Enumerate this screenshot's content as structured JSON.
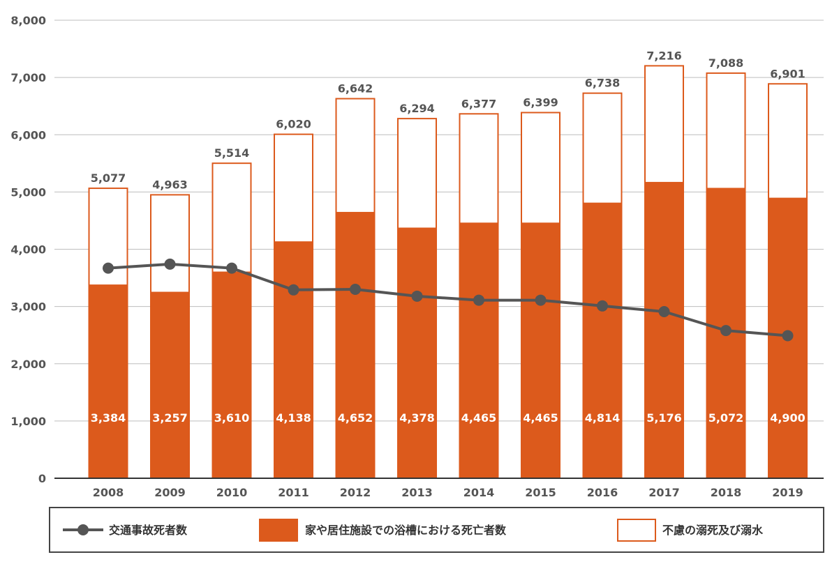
{
  "chart_data": {
    "type": "bar",
    "subtype": "stacked-bar-with-line",
    "categories": [
      "2008",
      "2009",
      "2010",
      "2011",
      "2012",
      "2013",
      "2014",
      "2015",
      "2016",
      "2017",
      "2018",
      "2019"
    ],
    "series": [
      {
        "name": "家や居住施設での浴槽における死亡者数",
        "kind": "bar-filled",
        "color": "#dc5a1c",
        "values": [
          3384,
          3257,
          3610,
          4138,
          4652,
          4378,
          4465,
          4465,
          4814,
          5176,
          5072,
          4900
        ],
        "labels": [
          "3,384",
          "3,257",
          "3,610",
          "4,138",
          "4,652",
          "4,378",
          "4,465",
          "4,465",
          "4,814",
          "5,176",
          "5,072",
          "4,900"
        ]
      },
      {
        "name": "不慮の溺死及び溺水",
        "kind": "bar-outline",
        "color": "#dc5a1c",
        "values": [
          5077,
          4963,
          5514,
          6020,
          6642,
          6294,
          6377,
          6399,
          6738,
          7216,
          7088,
          6901
        ],
        "labels": [
          "5,077",
          "4,963",
          "5,514",
          "6,020",
          "6,642",
          "6,294",
          "6,377",
          "6,399",
          "6,738",
          "7,216",
          "7,088",
          "6,901"
        ]
      },
      {
        "name": "交通事故死者数",
        "kind": "line",
        "color": "#555555",
        "values": [
          3670,
          3740,
          3670,
          3290,
          3300,
          3180,
          3110,
          3110,
          3010,
          2910,
          2580,
          2490
        ]
      }
    ],
    "y_axis": {
      "min": 0,
      "max": 8000,
      "ticks": [
        0,
        1000,
        2000,
        3000,
        4000,
        5000,
        6000,
        7000,
        8000
      ],
      "tick_labels": [
        "0",
        "1,000",
        "2,000",
        "3,000",
        "4,000",
        "5,000",
        "6,000",
        "7,000",
        "8,000"
      ]
    },
    "grid": true,
    "legend_position": "bottom",
    "title": "",
    "xlabel": "",
    "ylabel": ""
  }
}
